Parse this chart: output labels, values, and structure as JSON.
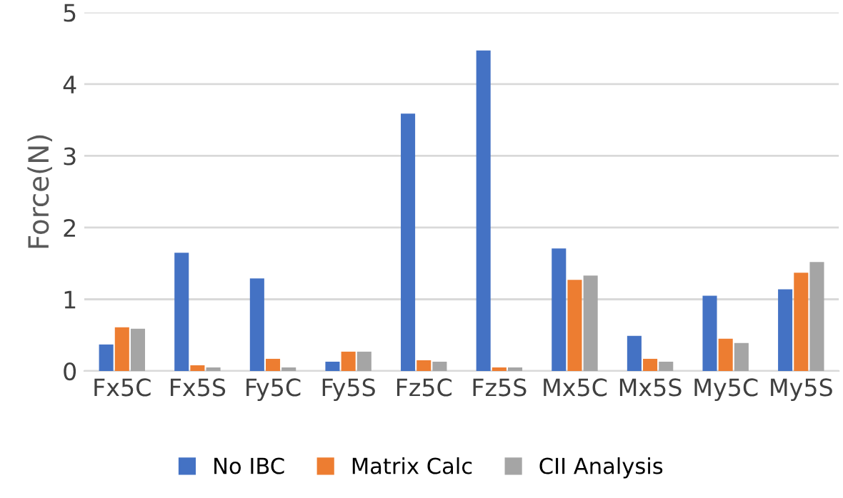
{
  "chart_data": {
    "type": "bar",
    "ylabel": "Force(N)",
    "categories": [
      "Fx5C",
      "Fx5S",
      "Fy5C",
      "Fy5S",
      "Fz5C",
      "Fz5S",
      "Mx5C",
      "Mx5S",
      "My5C",
      "My5S"
    ],
    "series": [
      {
        "name": "No IBC",
        "color": "#4472c4",
        "values": [
          0.37,
          1.65,
          1.29,
          0.13,
          3.59,
          4.47,
          1.71,
          0.49,
          1.05,
          1.14
        ]
      },
      {
        "name": "Matrix Calc",
        "color": "#ed7d31",
        "values": [
          0.61,
          0.08,
          0.17,
          0.27,
          0.15,
          0.05,
          1.27,
          0.17,
          0.45,
          1.37
        ]
      },
      {
        "name": "CII Analysis",
        "color": "#a5a5a5",
        "values": [
          0.59,
          0.05,
          0.05,
          0.27,
          0.13,
          0.05,
          1.33,
          0.13,
          0.39,
          1.52
        ]
      }
    ],
    "ylim": [
      0,
      5
    ],
    "yticks": [
      0,
      1,
      2,
      3,
      4,
      5
    ],
    "grid": "y",
    "legend": "bottom"
  }
}
